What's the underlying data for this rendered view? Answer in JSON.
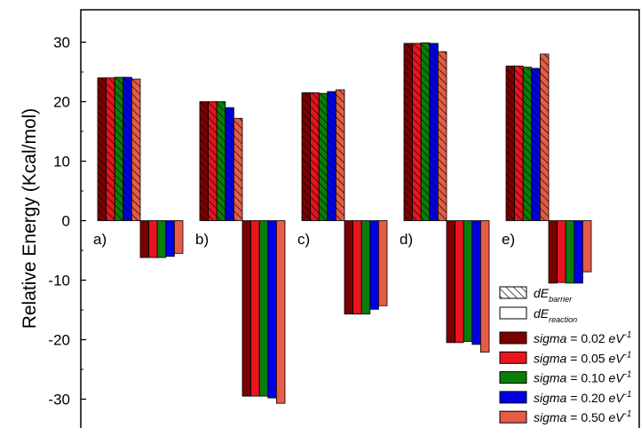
{
  "chart_data": {
    "type": "bar",
    "ylabel": "Relative Energy (Kcal/mol)",
    "ylim": [
      -34,
      35
    ],
    "yticks": [
      30,
      20,
      10,
      0,
      -10,
      -20,
      -30
    ],
    "yticks_text": [
      "30",
      "20",
      "10",
      "0",
      "-10",
      "-20",
      "-30"
    ],
    "groups": [
      "a)",
      "b)",
      "c)",
      "d)",
      "e)"
    ],
    "series": [
      {
        "name": "sigma = 0.02 eV-1",
        "color": "#7b0000",
        "barrier": [
          24.0,
          20.0,
          21.5,
          29.8,
          26.0
        ],
        "reaction": [
          -6.2,
          -29.5,
          -15.7,
          -20.5,
          -10.5
        ]
      },
      {
        "name": "sigma = 0.05 eV-1",
        "color": "#e8141e",
        "barrier": [
          24.0,
          20.0,
          21.5,
          29.8,
          26.0
        ],
        "reaction": [
          -6.2,
          -29.5,
          -15.7,
          -20.5,
          -10.4
        ]
      },
      {
        "name": "sigma = 0.10 eV-1",
        "color": "#0a7d0a",
        "barrier": [
          24.1,
          20.0,
          21.4,
          29.9,
          25.8
        ],
        "reaction": [
          -6.2,
          -29.5,
          -15.7,
          -20.3,
          -10.5
        ]
      },
      {
        "name": "sigma = 0.20 eV-1",
        "color": "#0000e6",
        "barrier": [
          24.1,
          19.0,
          21.7,
          29.8,
          25.6
        ],
        "reaction": [
          -6.0,
          -29.8,
          -14.9,
          -20.8,
          -10.5
        ]
      },
      {
        "name": "sigma = 0.50 eV-1",
        "color": "#e65c46",
        "barrier": [
          23.8,
          17.2,
          22.0,
          28.4,
          28.0
        ],
        "reaction": [
          -5.5,
          -30.7,
          -14.3,
          -22.1,
          -8.6
        ]
      }
    ],
    "legend": {
      "position": "bottom-right",
      "pattern_items": [
        {
          "symbol": "dE",
          "sub": "barrier",
          "hatched": true
        },
        {
          "symbol": "dE",
          "sub": "reaction",
          "hatched": false
        }
      ],
      "series_items": [
        {
          "var": "sigma",
          "value": " = 0.02 ",
          "unit": "eV",
          "sup": "-1"
        },
        {
          "var": "sigma",
          "value": " = 0.05 ",
          "unit": "eV",
          "sup": "-1"
        },
        {
          "var": "sigma",
          "value": " = 0.10 ",
          "unit": "eV",
          "sup": "-1"
        },
        {
          "var": "sigma",
          "value": " = 0.20 ",
          "unit": "eV",
          "sup": "-1"
        },
        {
          "var": "sigma",
          "value": " = 0.50 ",
          "unit": "eV",
          "sup": "-1"
        }
      ]
    },
    "grid": false
  }
}
